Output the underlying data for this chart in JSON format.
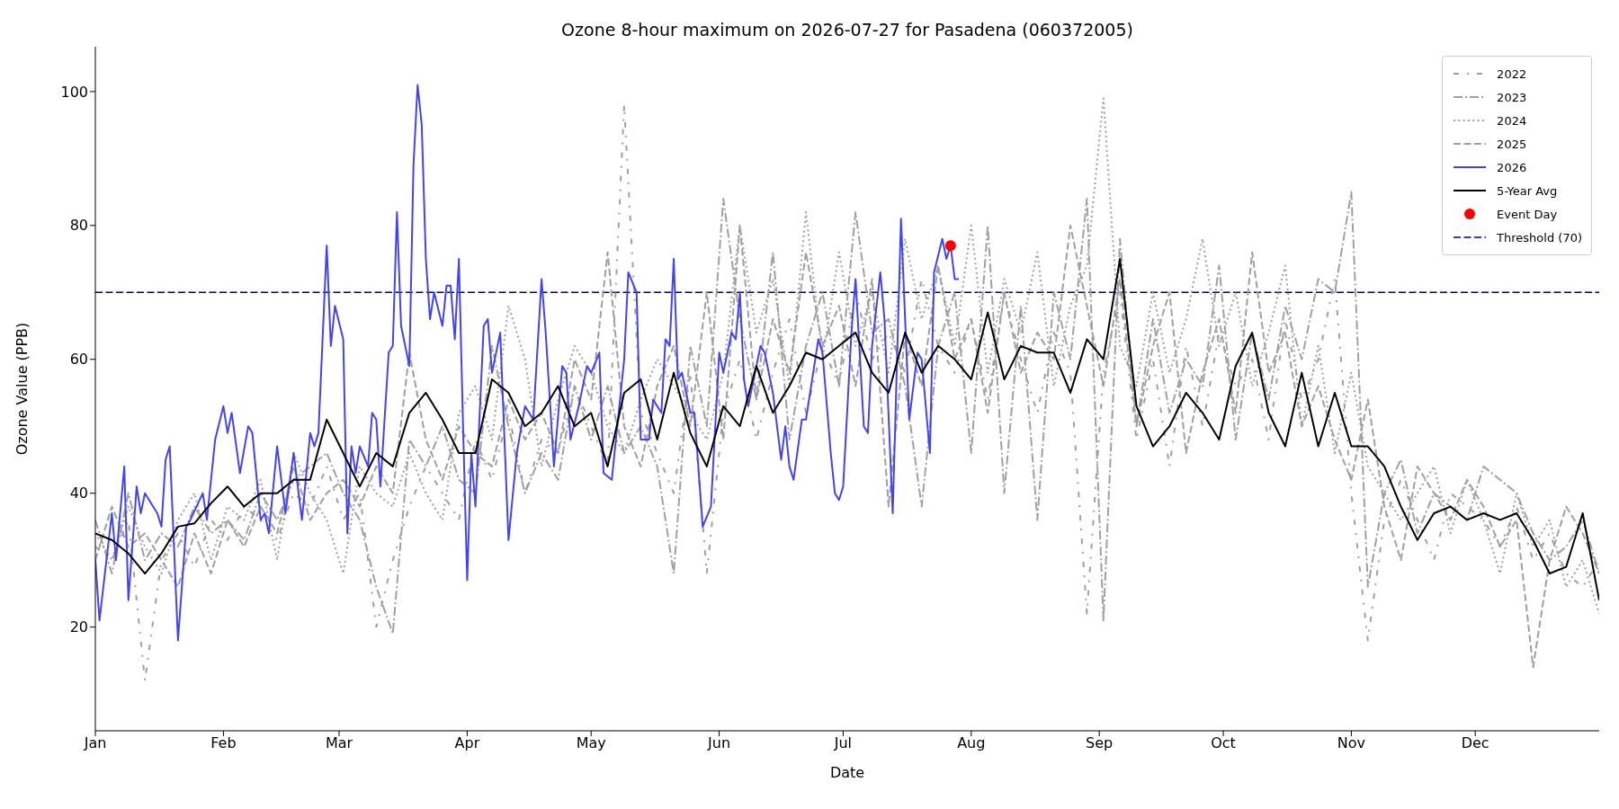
{
  "chart_data": {
    "type": "line",
    "title": "Ozone 8-hour maximum on 2026-07-27 for Pasadena (060372005)",
    "xlabel": "Date",
    "ylabel": "Ozone Value (PPB)",
    "x": [
      "--01-01",
      "--01-05",
      "--01-09",
      "--01-13",
      "--01-17",
      "--01-21",
      "--01-25",
      "--01-29",
      "--02-02",
      "--02-06",
      "--02-10",
      "--02-14",
      "--02-18",
      "--02-22",
      "--02-26",
      "--03-02",
      "--03-06",
      "--03-10",
      "--03-14",
      "--03-18",
      "--03-22",
      "--03-26",
      "--03-30",
      "--04-03",
      "--04-07",
      "--04-11",
      "--04-15",
      "--04-19",
      "--04-23",
      "--04-27",
      "--05-01",
      "--05-05",
      "--05-09",
      "--05-13",
      "--05-17",
      "--05-21",
      "--05-25",
      "--05-29",
      "--06-02",
      "--06-06",
      "--06-10",
      "--06-14",
      "--06-18",
      "--06-22",
      "--06-26",
      "--06-30",
      "--07-04",
      "--07-08",
      "--07-12",
      "--07-16",
      "--07-20",
      "--07-24",
      "--07-28",
      "--08-01",
      "--08-05",
      "--08-09",
      "--08-13",
      "--08-17",
      "--08-21",
      "--08-25",
      "--08-29",
      "--09-02",
      "--09-06",
      "--09-10",
      "--09-14",
      "--09-18",
      "--09-22",
      "--09-26",
      "--09-30",
      "--10-04",
      "--10-08",
      "--10-12",
      "--10-16",
      "--10-20",
      "--10-24",
      "--10-28",
      "--11-01",
      "--11-05",
      "--11-09",
      "--11-13",
      "--11-17",
      "--11-21",
      "--11-25",
      "--11-29",
      "--12-03",
      "--12-07",
      "--12-11",
      "--12-15",
      "--12-19",
      "--12-23",
      "--12-27",
      "--12-31"
    ],
    "series": [
      {
        "name": "2022",
        "color": "#a0a0a0",
        "line_style": "loose_dashdot",
        "values": [
          32,
          30,
          36,
          12,
          30,
          34,
          29,
          36,
          33,
          38,
          36,
          33,
          40,
          38,
          44,
          36,
          40,
          20,
          30,
          38,
          44,
          40,
          36,
          48,
          42,
          52,
          40,
          48,
          46,
          56,
          50,
          44,
          98,
          52,
          46,
          40,
          58,
          28,
          52,
          60,
          48,
          58,
          66,
          52,
          62,
          56,
          70,
          60,
          64,
          58,
          72,
          62,
          58,
          66,
          54,
          70,
          60,
          52,
          64,
          58,
          22,
          58,
          70,
          48,
          60,
          44,
          62,
          50,
          64,
          56,
          60,
          48,
          66,
          54,
          60,
          72,
          40,
          18,
          36,
          42,
          36,
          30,
          40,
          38,
          36,
          32,
          38,
          30,
          34,
          28,
          26,
          30
        ]
      },
      {
        "name": "2023",
        "color": "#a0a0a0",
        "line_style": "dashdot",
        "values": [
          36,
          28,
          40,
          30,
          34,
          32,
          38,
          34,
          36,
          33,
          40,
          36,
          42,
          44,
          46,
          40,
          36,
          26,
          19,
          48,
          44,
          50,
          42,
          40,
          62,
          50,
          40,
          46,
          42,
          56,
          48,
          56,
          46,
          50,
          44,
          28,
          62,
          50,
          84,
          66,
          54,
          76,
          48,
          62,
          70,
          56,
          82,
          64,
          66,
          56,
          38,
          62,
          70,
          46,
          80,
          40,
          68,
          36,
          70,
          60,
          84,
          21,
          78,
          50,
          66,
          52,
          60,
          56,
          74,
          48,
          64,
          54,
          68,
          60,
          72,
          70,
          85,
          26,
          40,
          45,
          34,
          40,
          38,
          36,
          44,
          42,
          40,
          34,
          30,
          32,
          36,
          28
        ]
      },
      {
        "name": "2024",
        "color": "#a0a0a0",
        "line_style": "dotted",
        "values": [
          34,
          30,
          38,
          32,
          28,
          36,
          40,
          30,
          38,
          36,
          42,
          30,
          46,
          40,
          36,
          28,
          44,
          40,
          38,
          46,
          40,
          36,
          52,
          56,
          48,
          68,
          60,
          44,
          54,
          62,
          58,
          50,
          46,
          54,
          60,
          56,
          52,
          48,
          58,
          80,
          64,
          72,
          56,
          82,
          60,
          76,
          62,
          70,
          58,
          78,
          66,
          74,
          62,
          80,
          58,
          72,
          64,
          76,
          56,
          68,
          74,
          99,
          62,
          56,
          70,
          58,
          66,
          78,
          62,
          70,
          56,
          64,
          74,
          50,
          62,
          46,
          58,
          44,
          40,
          36,
          40,
          44,
          34,
          42,
          36,
          28,
          40,
          32,
          36,
          26,
          30,
          22
        ]
      },
      {
        "name": "2025",
        "color": "#a0a0a0",
        "line_style": "dashed",
        "values": [
          30,
          38,
          32,
          34,
          30,
          26,
          34,
          28,
          36,
          32,
          38,
          34,
          44,
          36,
          40,
          42,
          38,
          44,
          40,
          61,
          48,
          42,
          50,
          46,
          44,
          54,
          48,
          52,
          46,
          60,
          54,
          76,
          50,
          44,
          56,
          62,
          50,
          70,
          48,
          80,
          54,
          66,
          58,
          76,
          62,
          68,
          56,
          72,
          38,
          64,
          56,
          74,
          60,
          66,
          52,
          70,
          58,
          64,
          60,
          80,
          68,
          56,
          72,
          50,
          62,
          70,
          46,
          58,
          66,
          52,
          76,
          58,
          64,
          50,
          56,
          48,
          42,
          54,
          38,
          30,
          44,
          40,
          36,
          42,
          38,
          32,
          36,
          14,
          30,
          38,
          34,
          28
        ]
      },
      {
        "name": "2026",
        "color": "#4444ee",
        "line_style": "solid",
        "x": [
          "--01-01",
          "--01-02",
          "--01-05",
          "--01-06",
          "--01-08",
          "--01-09",
          "--01-11",
          "--01-12",
          "--01-13",
          "--01-16",
          "--01-17",
          "--01-18",
          "--01-19",
          "--01-21",
          "--01-23",
          "--01-24",
          "--01-27",
          "--01-28",
          "--01-30",
          "--02-01",
          "--02-02",
          "--02-03",
          "--02-05",
          "--02-07",
          "--02-08",
          "--02-10",
          "--02-11",
          "--02-12",
          "--02-14",
          "--02-16",
          "--02-18",
          "--02-20",
          "--02-22",
          "--02-23",
          "--02-24",
          "--02-26",
          "--02-27",
          "--02-28",
          "--03-02",
          "--03-03",
          "--03-04",
          "--03-05",
          "--03-06",
          "--03-08",
          "--03-09",
          "--03-10",
          "--03-11",
          "--03-13",
          "--03-14",
          "--03-15",
          "--03-16",
          "--03-18",
          "--03-19",
          "--03-20",
          "--03-21",
          "--03-22",
          "--03-23",
          "--03-24",
          "--03-26",
          "--03-27",
          "--03-28",
          "--03-29",
          "--03-30",
          "--03-31",
          "--04-01",
          "--04-02",
          "--04-03",
          "--04-05",
          "--04-06",
          "--04-07",
          "--04-09",
          "--04-11",
          "--04-13",
          "--04-15",
          "--04-17",
          "--04-19",
          "--04-20",
          "--04-22",
          "--04-24",
          "--04-25",
          "--04-26",
          "--04-28",
          "--04-30",
          "--05-01",
          "--05-03",
          "--05-04",
          "--05-06",
          "--05-09",
          "--05-10",
          "--05-12",
          "--05-13",
          "--05-15",
          "--05-16",
          "--05-18",
          "--05-19",
          "--05-20",
          "--05-21",
          "--05-22",
          "--05-23",
          "--05-25",
          "--05-26",
          "--05-28",
          "--05-30",
          "--06-01",
          "--06-02",
          "--06-04",
          "--06-05",
          "--06-06",
          "--06-07",
          "--06-08",
          "--06-11",
          "--06-12",
          "--06-14",
          "--06-16",
          "--06-17",
          "--06-18",
          "--06-19",
          "--06-21",
          "--06-22",
          "--06-25",
          "--06-26",
          "--06-28",
          "--06-29",
          "--06-30",
          "--07-01",
          "--07-03",
          "--07-04",
          "--07-06",
          "--07-07",
          "--07-08",
          "--07-10",
          "--07-11",
          "--07-13",
          "--07-14",
          "--07-15",
          "--07-17",
          "--07-19",
          "--07-20",
          "--07-22",
          "--07-23",
          "--07-25",
          "--07-26",
          "--07-27",
          "--07-28",
          "--07-29"
        ],
        "values": [
          30,
          21,
          37,
          30,
          44,
          24,
          41,
          37,
          40,
          37,
          35,
          45,
          47,
          18,
          35,
          36,
          40,
          36,
          48,
          53,
          49,
          52,
          43,
          50,
          49,
          36,
          37,
          34,
          47,
          37,
          46,
          36,
          49,
          47,
          49,
          77,
          62,
          68,
          63,
          34,
          47,
          43,
          47,
          44,
          52,
          51,
          41,
          61,
          62,
          82,
          65,
          59,
          89,
          101,
          95,
          75,
          66,
          70,
          65,
          71,
          71,
          63,
          75,
          50,
          27,
          46,
          38,
          65,
          66,
          58,
          64,
          33,
          46,
          53,
          51,
          72,
          64,
          44,
          59,
          58,
          48,
          53,
          59,
          58,
          61,
          43,
          42,
          60,
          73,
          70,
          48,
          48,
          54,
          52,
          63,
          62,
          75,
          57,
          58,
          52,
          52,
          35,
          38,
          61,
          58,
          64,
          63,
          70,
          57,
          53,
          62,
          61,
          55,
          45,
          50,
          44,
          42,
          51,
          51,
          63,
          61,
          46,
          40,
          39,
          41,
          64,
          72,
          50,
          49,
          62,
          73,
          66,
          37,
          59,
          81,
          51,
          61,
          60,
          46,
          73,
          78,
          75,
          77,
          72,
          72
        ]
      },
      {
        "name": "5-Year Avg",
        "color": "#000000",
        "line_style": "solid",
        "values": [
          34,
          33,
          31,
          28,
          31,
          35,
          35.5,
          38.5,
          41,
          38,
          40,
          40,
          42,
          42,
          51,
          46,
          41,
          46,
          44,
          52,
          55,
          51,
          46,
          46,
          57,
          55,
          50,
          52,
          56,
          50,
          52,
          44,
          55,
          57,
          48,
          58,
          49,
          44,
          53,
          50,
          59,
          52,
          56,
          61,
          60,
          62,
          64,
          58,
          55,
          64,
          58,
          62,
          60,
          57,
          67,
          57,
          62,
          61,
          61,
          55,
          63,
          60,
          75,
          53,
          47,
          50,
          55,
          52,
          48,
          59,
          64,
          52,
          47,
          58,
          47,
          55,
          47,
          47,
          44,
          38,
          33,
          37,
          38,
          36,
          37,
          36,
          37,
          33,
          28,
          29,
          37,
          24
        ]
      },
      {
        "name": "Event Day",
        "type": "scatter",
        "marker": "circle",
        "color": "#ff0000",
        "x": [
          "--07-27"
        ],
        "values": [
          77
        ]
      }
    ],
    "ref_lines": [
      {
        "axis": "y",
        "value": 70,
        "label": "Threshold (70)",
        "color": "#000080",
        "line_style": "dashed"
      }
    ],
    "xlim": [
      "--01-01",
      "--12-31"
    ],
    "xticks": [
      {
        "value": "--01-01",
        "label": "Jan"
      },
      {
        "value": "--02-01",
        "label": "Feb"
      },
      {
        "value": "--03-01",
        "label": "Mar"
      },
      {
        "value": "--04-01",
        "label": "Apr"
      },
      {
        "value": "--05-01",
        "label": "May"
      },
      {
        "value": "--06-01",
        "label": "Jun"
      },
      {
        "value": "--07-01",
        "label": "Jul"
      },
      {
        "value": "--08-01",
        "label": "Aug"
      },
      {
        "value": "--09-01",
        "label": "Sep"
      },
      {
        "value": "--10-01",
        "label": "Oct"
      },
      {
        "value": "--11-01",
        "label": "Nov"
      },
      {
        "value": "--12-01",
        "label": "Dec"
      }
    ],
    "ylim": [
      4.5,
      106.7
    ],
    "yticks": [
      20,
      40,
      60,
      80,
      100
    ],
    "grid": false,
    "legend": "top right"
  }
}
